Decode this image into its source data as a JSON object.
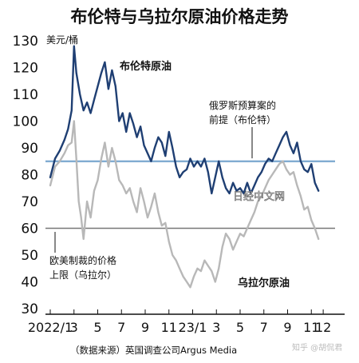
{
  "chart_data": {
    "type": "line",
    "title": "布伦特与乌拉尔原油价格走势",
    "y_unit": "美元/桶",
    "ylim": [
      30,
      130
    ],
    "y_ticks": [
      30,
      40,
      50,
      60,
      70,
      80,
      90,
      100,
      110,
      120,
      130
    ],
    "x_range": [
      0,
      24
    ],
    "x_ticks": [
      {
        "x": 0,
        "label": "2022/1"
      },
      {
        "x": 2,
        "label": "3"
      },
      {
        "x": 4,
        "label": "5"
      },
      {
        "x": 6,
        "label": "7"
      },
      {
        "x": 8,
        "label": "9"
      },
      {
        "x": 10,
        "label": "11"
      },
      {
        "x": 12,
        "label": "23/1"
      },
      {
        "x": 14,
        "label": "3"
      },
      {
        "x": 16,
        "label": "5"
      },
      {
        "x": 18,
        "label": "7"
      },
      {
        "x": 20,
        "label": "9"
      },
      {
        "x": 22,
        "label": "11"
      },
      {
        "x": 23,
        "label": "12"
      }
    ],
    "grid": false,
    "series": [
      {
        "name": "布伦特原油",
        "color": "#1f3f73",
        "points": [
          [
            0.0,
            79
          ],
          [
            0.4,
            86
          ],
          [
            0.8,
            89
          ],
          [
            1.2,
            93
          ],
          [
            1.5,
            97
          ],
          [
            1.8,
            104
          ],
          [
            2.0,
            128
          ],
          [
            2.2,
            118
          ],
          [
            2.5,
            110
          ],
          [
            2.8,
            104
          ],
          [
            3.1,
            107
          ],
          [
            3.4,
            103
          ],
          [
            3.7,
            108
          ],
          [
            4.0,
            113
          ],
          [
            4.3,
            118
          ],
          [
            4.6,
            122
          ],
          [
            4.9,
            112
          ],
          [
            5.2,
            119
          ],
          [
            5.5,
            113
          ],
          [
            5.8,
            100
          ],
          [
            6.1,
            103
          ],
          [
            6.4,
            96
          ],
          [
            6.7,
            103
          ],
          [
            7.0,
            99
          ],
          [
            7.3,
            94
          ],
          [
            7.6,
            98
          ],
          [
            7.9,
            91
          ],
          [
            8.2,
            88
          ],
          [
            8.5,
            85
          ],
          [
            8.8,
            90
          ],
          [
            9.1,
            94
          ],
          [
            9.4,
            92
          ],
          [
            9.7,
            87
          ],
          [
            10.0,
            96
          ],
          [
            10.3,
            90
          ],
          [
            10.6,
            83
          ],
          [
            10.9,
            79
          ],
          [
            11.2,
            81
          ],
          [
            11.5,
            82
          ],
          [
            11.8,
            86
          ],
          [
            12.1,
            83
          ],
          [
            12.4,
            85
          ],
          [
            12.7,
            83
          ],
          [
            13.0,
            86
          ],
          [
            13.3,
            81
          ],
          [
            13.6,
            73
          ],
          [
            13.9,
            79
          ],
          [
            14.2,
            85
          ],
          [
            14.5,
            79
          ],
          [
            14.8,
            75
          ],
          [
            15.1,
            73
          ],
          [
            15.4,
            77
          ],
          [
            15.7,
            74
          ],
          [
            16.0,
            75
          ],
          [
            16.3,
            73
          ],
          [
            16.6,
            77
          ],
          [
            16.9,
            73
          ],
          [
            17.2,
            76
          ],
          [
            17.5,
            79
          ],
          [
            17.8,
            81
          ],
          [
            18.1,
            84
          ],
          [
            18.4,
            86
          ],
          [
            18.7,
            85
          ],
          [
            19.0,
            88
          ],
          [
            19.3,
            91
          ],
          [
            19.6,
            94
          ],
          [
            19.9,
            96
          ],
          [
            20.2,
            91
          ],
          [
            20.5,
            88
          ],
          [
            20.8,
            92
          ],
          [
            21.1,
            85
          ],
          [
            21.4,
            82
          ],
          [
            21.7,
            81
          ],
          [
            22.0,
            84
          ],
          [
            22.3,
            77
          ],
          [
            22.6,
            74
          ]
        ]
      },
      {
        "name": "乌拉尔原油",
        "color": "#b8b8b8",
        "points": [
          [
            0.0,
            76
          ],
          [
            0.4,
            83
          ],
          [
            0.8,
            85
          ],
          [
            1.2,
            88
          ],
          [
            1.5,
            91
          ],
          [
            1.8,
            92
          ],
          [
            2.0,
            100
          ],
          [
            2.2,
            86
          ],
          [
            2.4,
            70
          ],
          [
            2.6,
            64
          ],
          [
            2.8,
            56
          ],
          [
            3.1,
            70
          ],
          [
            3.4,
            64
          ],
          [
            3.7,
            74
          ],
          [
            4.0,
            78
          ],
          [
            4.3,
            86
          ],
          [
            4.6,
            92
          ],
          [
            4.9,
            83
          ],
          [
            5.2,
            90
          ],
          [
            5.5,
            85
          ],
          [
            5.8,
            78
          ],
          [
            6.1,
            76
          ],
          [
            6.4,
            73
          ],
          [
            6.7,
            75
          ],
          [
            7.0,
            70
          ],
          [
            7.3,
            66
          ],
          [
            7.6,
            75
          ],
          [
            7.9,
            70
          ],
          [
            8.2,
            64
          ],
          [
            8.5,
            68
          ],
          [
            8.8,
            73
          ],
          [
            9.1,
            66
          ],
          [
            9.4,
            61
          ],
          [
            9.7,
            62
          ],
          [
            10.0,
            55
          ],
          [
            10.3,
            50
          ],
          [
            10.6,
            48
          ],
          [
            10.9,
            45
          ],
          [
            11.2,
            42
          ],
          [
            11.5,
            40
          ],
          [
            11.8,
            38
          ],
          [
            12.1,
            42
          ],
          [
            12.4,
            45
          ],
          [
            12.7,
            44
          ],
          [
            13.0,
            48
          ],
          [
            13.3,
            46
          ],
          [
            13.6,
            44
          ],
          [
            13.9,
            40
          ],
          [
            14.2,
            45
          ],
          [
            14.5,
            53
          ],
          [
            14.8,
            58
          ],
          [
            15.1,
            56
          ],
          [
            15.4,
            52
          ],
          [
            15.7,
            55
          ],
          [
            16.0,
            58
          ],
          [
            16.3,
            57
          ],
          [
            16.6,
            60
          ],
          [
            16.9,
            63
          ],
          [
            17.2,
            66
          ],
          [
            17.5,
            70
          ],
          [
            17.8,
            72
          ],
          [
            18.1,
            75
          ],
          [
            18.4,
            78
          ],
          [
            18.7,
            80
          ],
          [
            19.0,
            82
          ],
          [
            19.3,
            84
          ],
          [
            19.6,
            85
          ],
          [
            19.9,
            82
          ],
          [
            20.2,
            80
          ],
          [
            20.5,
            81
          ],
          [
            20.8,
            76
          ],
          [
            21.1,
            72
          ],
          [
            21.4,
            67
          ],
          [
            21.7,
            68
          ],
          [
            22.0,
            63
          ],
          [
            22.3,
            60
          ],
          [
            22.6,
            56
          ]
        ]
      }
    ],
    "reference_lines": [
      {
        "value": 85,
        "color": "#7aa7cf",
        "label_line1": "俄罗斯预算案的",
        "label_line2": "前提（布伦特）"
      },
      {
        "value": 60,
        "color": "#777777",
        "label_line1": "欧美制裁的价格",
        "label_line2": "上限（乌拉尔）"
      }
    ],
    "source": "（数据来源）英国调查公司Argus Media",
    "watermark": "日经中文网",
    "credit": "知乎 @胡侃君"
  }
}
